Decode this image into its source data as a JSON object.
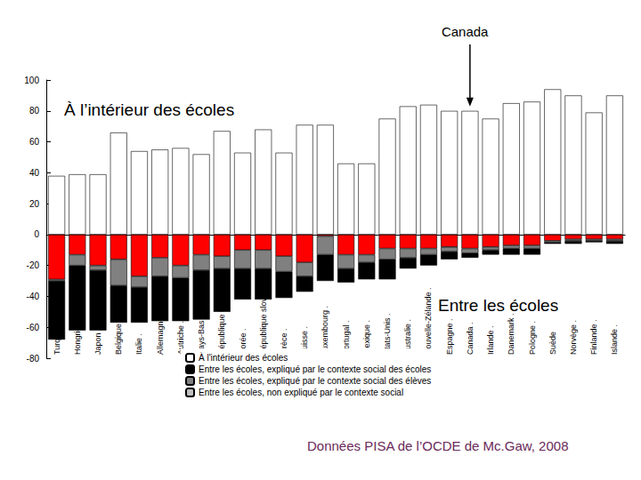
{
  "chart_data": {
    "type": "bar",
    "stacked": true,
    "grid": false,
    "legend": "bottom",
    "categories": [
      "Turquie .",
      "Hongrie .",
      "Japon .",
      "Belgique .",
      "Italie .",
      "Allemagne .",
      "Autriche .",
      "Pays-Bas .",
      "République tchèque .",
      "Corée .",
      "République slovaque .",
      "Grèce .",
      "Suisse .",
      "Luxembourg .",
      "Portugal .",
      "Mexique .",
      "États-Unis .",
      "Australie .",
      "Nouvelle-Zélande .",
      "Espagne .",
      "Canada .",
      "Irlande .",
      "Danemark .",
      "Pologne .",
      "Suède",
      "Norvège .",
      "Finlande .",
      "Islande ."
    ],
    "series": [
      {
        "name": "À l'intérieur des écoles",
        "color": "#ffffff",
        "values": [
          38,
          39,
          39,
          66,
          54,
          55,
          56,
          52,
          67,
          53,
          68,
          53,
          71,
          71,
          46,
          46,
          75,
          83,
          84,
          80,
          80,
          75,
          85,
          86,
          94,
          90,
          79,
          90
        ]
      },
      {
        "name": "Entre les écoles, non expliqué par le contexte social",
        "color": "#c0c0c0",
        "colors": [
          "#ff0000",
          "#ff0000",
          "#ff0000",
          "#ff0000",
          "#ff0000",
          "#ff0000",
          "#ff0000",
          "#ff0000",
          "#ff0000",
          "#ff0000",
          "#ff0000",
          "#ff0000",
          "#ff0000",
          "#ff0000",
          "#ff0000",
          "#ff0000",
          "#ff0000",
          "#ff0000",
          "#ff0000",
          "#ff0000",
          "#ff0000",
          "#ff0000",
          "#ff0000",
          "#ff0000",
          "#ff0000",
          "#ff0000",
          "#ff0000",
          "#ff0000"
        ],
        "values": [
          -29,
          -13,
          -20,
          -16,
          -27,
          -15,
          -20,
          -13,
          -14,
          -10,
          -10,
          -14,
          -18,
          -1,
          -13,
          -13,
          -9,
          -9,
          -9,
          -8,
          -9,
          -8,
          -7,
          -7,
          -4,
          -3,
          -3,
          -3
        ]
      },
      {
        "name": "Entre les écoles, expliqué par le contexte social des élèves",
        "color": "#808080",
        "values": [
          -1,
          -7,
          -3,
          -17,
          -7,
          -12,
          -8,
          -10,
          -8,
          -12,
          -12,
          -10,
          -9,
          -12,
          -9,
          -5,
          -7,
          -6,
          -4,
          -3,
          -3,
          -2,
          -2,
          -2,
          -1,
          -1,
          -1,
          -1
        ]
      },
      {
        "name": "Entre les écoles, expliqué par le contexte social des écoles",
        "color": "#000000",
        "values": [
          -38,
          -42,
          -39,
          -24,
          -23,
          -29,
          -28,
          -32,
          -28,
          -20,
          -20,
          -17,
          -10,
          -17,
          -9,
          -11,
          -13,
          -7,
          -7,
          -5,
          -3,
          -3,
          -4,
          -4,
          -1,
          -2,
          -1,
          -2
        ]
      }
    ],
    "ylim": [
      -80,
      100
    ],
    "yticks": [
      -80,
      -60,
      -40,
      -20,
      0,
      20,
      40,
      60,
      80,
      100
    ],
    "annotations": [
      "À l’intérieur des écoles",
      "Entre les écoles",
      "Canada",
      "Données PISA de l’OCDE de Mc.Gaw, 2008"
    ]
  }
}
